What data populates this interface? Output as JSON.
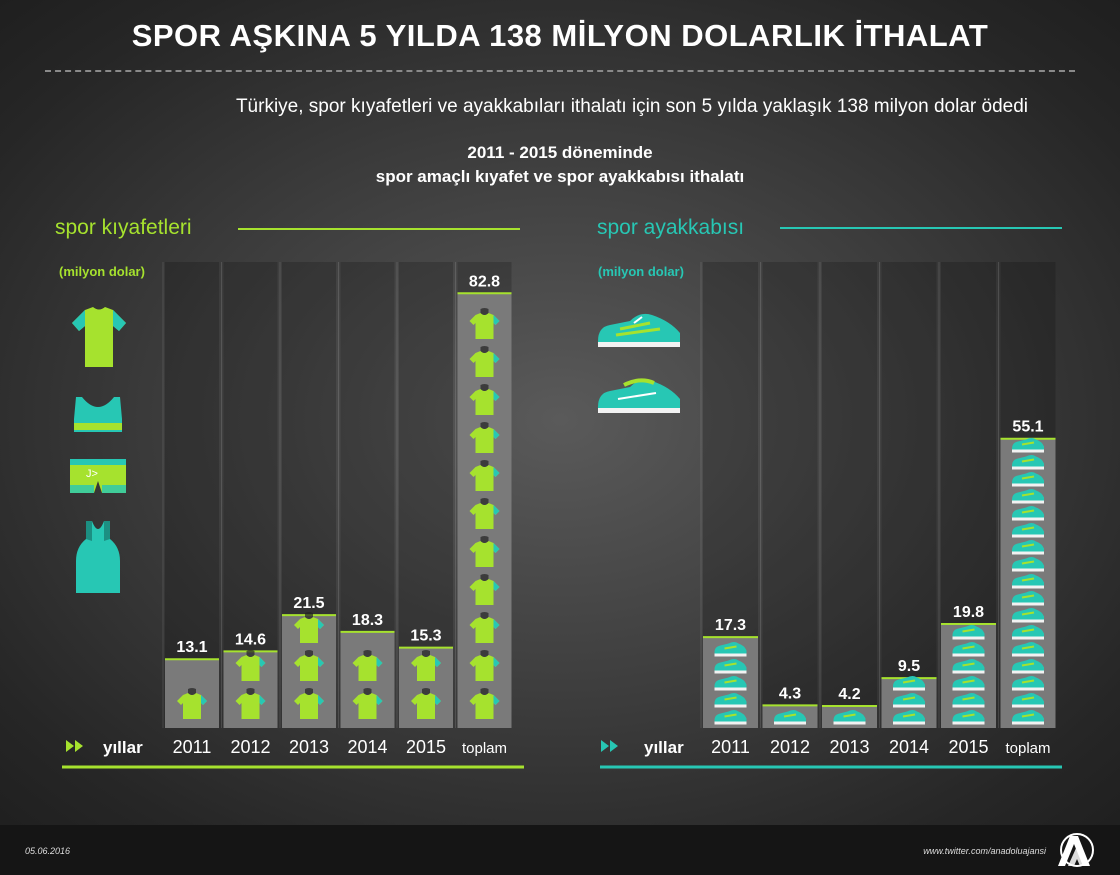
{
  "header": {
    "title": "SPOR AŞKINA 5 YILDA 138 MİLYON DOLARLIK İTHALAT",
    "subtitle": "Türkiye, spor kıyafetleri ve ayakkabıları ithalatı için son 5 yılda yaklaşık 138 milyon dolar ödedi",
    "chart_title_line1": "2011 - 2015 döneminde",
    "chart_title_line2": "spor amaçlı kıyafet ve spor ayakkabısı ithalatı"
  },
  "colors": {
    "green": "#a6e22e",
    "teal": "#27c7b4",
    "column_bg": "#7a7a7a"
  },
  "chart_data": [
    {
      "type": "bar",
      "title": "spor kıyafetleri",
      "unit": "(milyon dolar)",
      "xlabel": "yıllar",
      "categories": [
        "2011",
        "2012",
        "2013",
        "2014",
        "2015",
        "toplam"
      ],
      "values": [
        13.1,
        14.6,
        21.5,
        18.3,
        15.3,
        82.8
      ],
      "value_labels": [
        "13.1",
        "14.6",
        "21.5",
        "18.3",
        "15.3",
        "82.8"
      ],
      "ylim": [
        0,
        90
      ],
      "icons": [
        "t-shirt-icon",
        "sports-bra-icon",
        "shorts-icon",
        "tank-top-icon"
      ]
    },
    {
      "type": "bar",
      "title": "spor ayakkabısı",
      "unit": "(milyon dolar)",
      "xlabel": "yıllar",
      "categories": [
        "2011",
        "2012",
        "2013",
        "2014",
        "2015",
        "toplam"
      ],
      "values": [
        17.3,
        4.3,
        4.2,
        9.5,
        19.8,
        55.1
      ],
      "value_labels": [
        "17.3",
        "4.3",
        "4.2",
        "9.5",
        "19.8",
        "55.1"
      ],
      "ylim": [
        0,
        90
      ],
      "icons": [
        "sneaker-icon",
        "sneaker-icon"
      ]
    }
  ],
  "footer": {
    "date": "05.06.2016",
    "twitter": "www.twitter.com/anadoluajansi",
    "logo": "AA"
  }
}
